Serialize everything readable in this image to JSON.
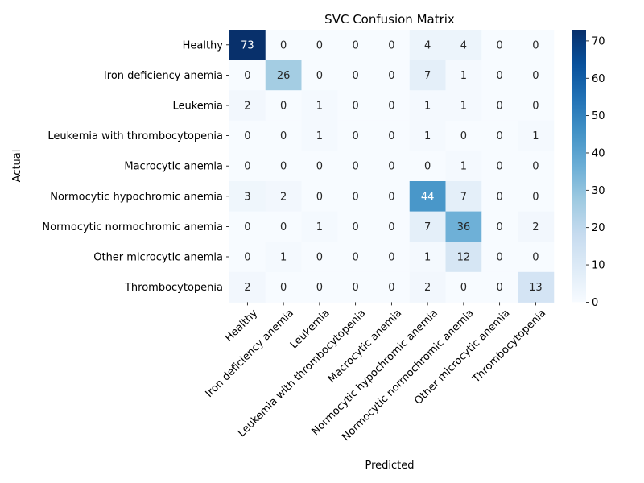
{
  "chart_data": {
    "type": "heatmap",
    "title": "SVC Confusion Matrix",
    "xlabel": "Predicted",
    "ylabel": "Actual",
    "labels": [
      "Healthy",
      "Iron deficiency anemia",
      "Leukemia",
      "Leukemia with thrombocytopenia",
      "Macrocytic anemia",
      "Normocytic hypochromic anemia",
      "Normocytic normochromic anemia",
      "Other microcytic anemia",
      "Thrombocytopenia"
    ],
    "matrix": [
      [
        73,
        0,
        0,
        0,
        0,
        4,
        4,
        0,
        0
      ],
      [
        0,
        26,
        0,
        0,
        0,
        7,
        1,
        0,
        0
      ],
      [
        2,
        0,
        1,
        0,
        0,
        1,
        1,
        0,
        0
      ],
      [
        0,
        0,
        1,
        0,
        0,
        1,
        0,
        0,
        1
      ],
      [
        0,
        0,
        0,
        0,
        0,
        0,
        1,
        0,
        0
      ],
      [
        3,
        2,
        0,
        0,
        0,
        44,
        7,
        0,
        0
      ],
      [
        0,
        0,
        1,
        0,
        0,
        7,
        36,
        0,
        2
      ],
      [
        0,
        1,
        0,
        0,
        0,
        1,
        12,
        0,
        0
      ],
      [
        2,
        0,
        0,
        0,
        0,
        2,
        0,
        0,
        13
      ]
    ],
    "value_range": [
      0,
      73
    ],
    "colorbar_ticks": [
      0,
      10,
      20,
      30,
      40,
      50,
      60,
      70
    ],
    "colormap": "Blues",
    "colors": {
      "low": "#f7fbff",
      "high": "#08306b",
      "dark_text": "#262626",
      "light_text": "#ffffff"
    }
  }
}
